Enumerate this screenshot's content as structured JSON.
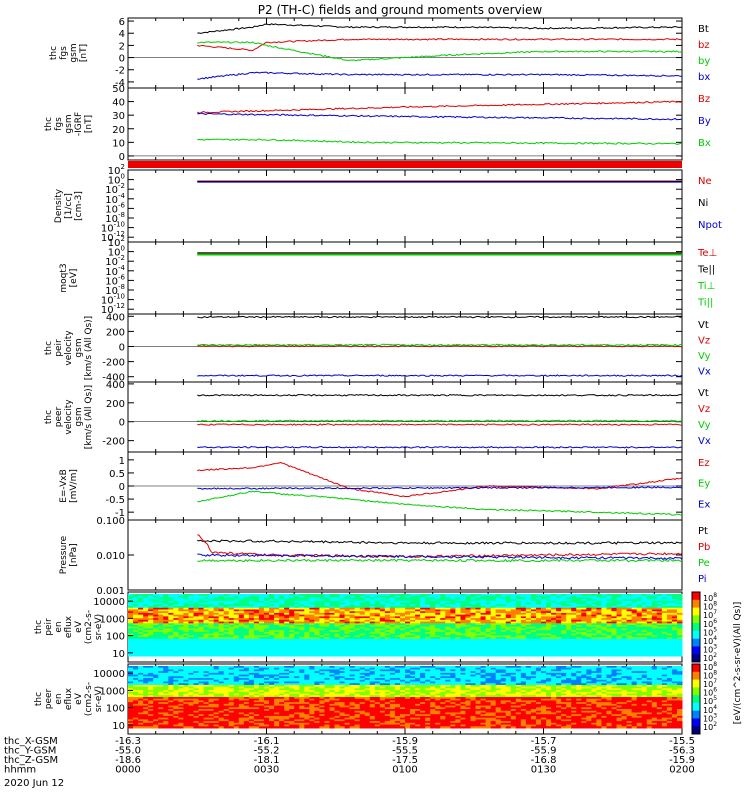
{
  "title": "P2 (TH-C) fields and ground moments overview",
  "chart_data": [
    {
      "type": "line",
      "ylabel": [
        "thc",
        "fgs",
        "gsm",
        "[nT]"
      ],
      "yticks": [
        -4,
        -2,
        0,
        2,
        4,
        6
      ],
      "ylim": [
        -5,
        6.5
      ],
      "series": [
        {
          "name": "Bt",
          "color": "#000000",
          "x": [
            0.25,
            0.45,
            0.5,
            0.8,
            1.2,
            1.5,
            2.0
          ],
          "values": [
            4.0,
            5.0,
            5.5,
            5.0,
            5.0,
            4.8,
            5.0
          ]
        },
        {
          "name": "bz",
          "color": "#dd0000",
          "x": [
            0.25,
            0.45,
            0.5,
            0.8,
            1.2,
            1.5,
            2.0
          ],
          "values": [
            2.0,
            1.2,
            2.5,
            3.0,
            3.0,
            3.0,
            3.0
          ]
        },
        {
          "name": "by",
          "color": "#00cc00",
          "x": [
            0.25,
            0.45,
            0.5,
            0.8,
            1.2,
            1.5,
            2.0
          ],
          "values": [
            2.5,
            2.5,
            2.0,
            -0.5,
            0.5,
            1.0,
            1.0
          ]
        },
        {
          "name": "bx",
          "color": "#0000cc",
          "x": [
            0.25,
            0.45,
            0.5,
            0.8,
            1.2,
            1.5,
            2.0
          ],
          "values": [
            -3.5,
            -2.5,
            -2.5,
            -2.8,
            -2.8,
            -2.8,
            -3.0
          ]
        }
      ]
    },
    {
      "type": "line",
      "ylabel": [
        "thc",
        "fgs",
        "gsm",
        "-IGRF",
        "[nT]"
      ],
      "yticks": [
        0,
        10,
        20,
        30,
        40,
        50
      ],
      "ylim": [
        -3,
        50
      ],
      "series": [
        {
          "name": "Bz",
          "color": "#dd0000",
          "x": [
            0.25,
            1.0,
            2.0
          ],
          "values": [
            32,
            36,
            40
          ]
        },
        {
          "name": "By",
          "color": "#0000cc",
          "x": [
            0.25,
            1.0,
            2.0
          ],
          "values": [
            31,
            29,
            27
          ]
        },
        {
          "name": "Bx",
          "color": "#00cc00",
          "x": [
            0.25,
            0.5,
            0.85,
            2.0
          ],
          "values": [
            12,
            12,
            10,
            9
          ]
        }
      ]
    },
    {
      "type": "line",
      "ylabel": [
        "Density",
        "[1/cc]",
        "[cm-3]"
      ],
      "ylog": true,
      "yticks": [
        "10^2",
        "10^0",
        "10^-2",
        "10^-4",
        "10^-6",
        "10^-8",
        "10^-10",
        "10^-12"
      ],
      "ylim": [
        -13,
        2
      ],
      "series": [
        {
          "name": "Ne",
          "color": "#dd0000",
          "x": [
            0.25,
            2.0
          ],
          "values": [
            0.5,
            0.5
          ]
        },
        {
          "name": "Ni",
          "color": "#000000",
          "x": [
            0.25,
            2.0
          ],
          "values": [
            0.4,
            0.4
          ]
        },
        {
          "name": "Npot",
          "color": "#0000cc",
          "x": [
            0.25,
            2.0
          ],
          "values": [
            0.3,
            0.3
          ]
        }
      ]
    },
    {
      "type": "line",
      "ylabel": [
        "moqt3",
        "[eV]"
      ],
      "ylog": true,
      "yticks": [
        "10^2",
        "10^0",
        "10^-2",
        "10^-4",
        "10^-6",
        "10^-8",
        "10^-10",
        "10^-12"
      ],
      "ylim": [
        -13,
        2
      ],
      "series": [
        {
          "name": "Te⊥",
          "color": "#dd0000",
          "x": [
            0.25,
            2.0
          ],
          "values": [
            0.6,
            0.6
          ]
        },
        {
          "name": "Te||",
          "color": "#000000",
          "x": [
            0.25,
            2.0
          ],
          "values": [
            0.5,
            0.5
          ]
        },
        {
          "name": "Ti⊥",
          "color": "#00cc00",
          "x": [
            0.25,
            2.0
          ],
          "values": [
            0.3,
            0.3
          ]
        },
        {
          "name": "Ti||",
          "color": "#00cc00",
          "x": [
            0.25,
            2.0
          ],
          "values": [
            0.2,
            0.2
          ]
        }
      ]
    },
    {
      "type": "line",
      "ylabel": [
        "thc",
        "peir",
        "velocity",
        "gsm",
        "[km/s (All Qs)]"
      ],
      "yticks": [
        -400,
        -200,
        0,
        200,
        400
      ],
      "ylim": [
        -470,
        430
      ],
      "series": [
        {
          "name": "Vt",
          "color": "#000000",
          "x": [
            0.25,
            2.0
          ],
          "values": [
            390,
            390
          ]
        },
        {
          "name": "Vz",
          "color": "#dd0000",
          "x": [
            0.25,
            2.0
          ],
          "values": [
            5,
            5
          ]
        },
        {
          "name": "Vy",
          "color": "#00cc00",
          "x": [
            0.25,
            2.0
          ],
          "values": [
            20,
            20
          ]
        },
        {
          "name": "Vx",
          "color": "#0000cc",
          "x": [
            0.25,
            2.0
          ],
          "values": [
            -385,
            -385
          ]
        }
      ]
    },
    {
      "type": "line",
      "ylabel": [
        "thc",
        "peer",
        "velocity",
        "gsm",
        "[km/s (All Qs)]"
      ],
      "yticks": [
        -200,
        0,
        200,
        400
      ],
      "ylim": [
        -320,
        420
      ],
      "series": [
        {
          "name": "Vt",
          "color": "#000000",
          "x": [
            0.25,
            2.0
          ],
          "values": [
            280,
            280
          ]
        },
        {
          "name": "Vz",
          "color": "#dd0000",
          "x": [
            0.25,
            2.0
          ],
          "values": [
            -30,
            -30
          ]
        },
        {
          "name": "Vy",
          "color": "#00cc00",
          "x": [
            0.25,
            2.0
          ],
          "values": [
            10,
            10
          ]
        },
        {
          "name": "Vx",
          "color": "#0000cc",
          "x": [
            0.25,
            2.0
          ],
          "values": [
            -270,
            -270
          ]
        }
      ]
    },
    {
      "type": "line",
      "ylabel": [
        "E=-VxB",
        "[mV/m]"
      ],
      "yticks": [
        -1.0,
        -0.5,
        0.0,
        0.5,
        1.0
      ],
      "ylim": [
        -1.3,
        1.3
      ],
      "series": [
        {
          "name": "Ez",
          "color": "#dd0000",
          "x": [
            0.25,
            0.45,
            0.55,
            0.8,
            1.0,
            1.3,
            1.7,
            2.0
          ],
          "values": [
            0.6,
            0.7,
            0.9,
            -0.1,
            -0.4,
            0.0,
            -0.1,
            0.3
          ]
        },
        {
          "name": "Ey",
          "color": "#00cc00",
          "x": [
            0.25,
            0.45,
            0.55,
            0.8,
            1.0,
            1.3,
            1.7,
            2.0
          ],
          "values": [
            -0.6,
            -0.2,
            -0.3,
            -0.5,
            -0.7,
            -0.9,
            -1.0,
            -1.1
          ]
        },
        {
          "name": "Ex",
          "color": "#0000cc",
          "x": [
            0.25,
            2.0
          ],
          "values": [
            -0.1,
            -0.05
          ]
        }
      ]
    },
    {
      "type": "line",
      "ylabel": [
        "Pressure",
        "[nPa]"
      ],
      "ylog": true,
      "yticks": [
        "0.100",
        "0.010",
        "0.001"
      ],
      "ylim": [
        0.001,
        0.1
      ],
      "series": [
        {
          "name": "Pt",
          "color": "#000000",
          "x": [
            0.25,
            0.5,
            1.0,
            2.0
          ],
          "values": [
            0.025,
            0.025,
            0.022,
            0.022
          ]
        },
        {
          "name": "Pb",
          "color": "#dd0000",
          "x": [
            0.25,
            0.3,
            0.5,
            1.0,
            2.0
          ],
          "values": [
            0.04,
            0.012,
            0.01,
            0.009,
            0.011
          ]
        },
        {
          "name": "Pe",
          "color": "#00cc00",
          "x": [
            0.25,
            2.0
          ],
          "values": [
            0.007,
            0.007
          ]
        },
        {
          "name": "Pi",
          "color": "#0000cc",
          "x": [
            0.25,
            2.0
          ],
          "values": [
            0.01,
            0.008
          ]
        }
      ]
    },
    {
      "type": "heatmap",
      "ylabel": [
        "thc",
        "peir",
        "en",
        "eflux",
        "eV",
        "(cm2-s-",
        "sr-eV)"
      ],
      "yticks": [
        10,
        100,
        1000,
        10000
      ],
      "ylog": true
    },
    {
      "type": "heatmap",
      "ylabel": [
        "thc",
        "peer",
        "en",
        "eflux",
        "eV",
        "(cm2-s-",
        "sr-eV)"
      ],
      "yticks": [
        10,
        100,
        1000,
        10000
      ],
      "ylog": true
    }
  ],
  "colorbar": {
    "label": "[eV/(cm^2-s-sr-eV)(All Qs)]",
    "ticks": [
      "10^8",
      "10^8",
      "10^7",
      "10^6",
      "10^5",
      "10^4",
      "10^3",
      "10^2",
      "10^8",
      "10^8",
      "10^7",
      "10^6",
      "10^5",
      "10^4",
      "10^3",
      "10^2"
    ]
  },
  "xaxis": {
    "rows": [
      {
        "label": "thc_X-GSM",
        "values": [
          "-16.3",
          "-16.1",
          "-15.9",
          "-15.7",
          "-15.5"
        ]
      },
      {
        "label": "thc_Y-GSM",
        "values": [
          "-55.0",
          "-55.2",
          "-55.5",
          "-55.9",
          "-56.3"
        ]
      },
      {
        "label": "thc_Z-GSM",
        "values": [
          "-18.6",
          "-18.1",
          "-17.5",
          "-16.8",
          "-15.9"
        ]
      },
      {
        "label": "hhmm",
        "values": [
          "0000",
          "0030",
          "0100",
          "0130",
          "0200"
        ]
      }
    ],
    "date": "2020 Jun 12"
  }
}
